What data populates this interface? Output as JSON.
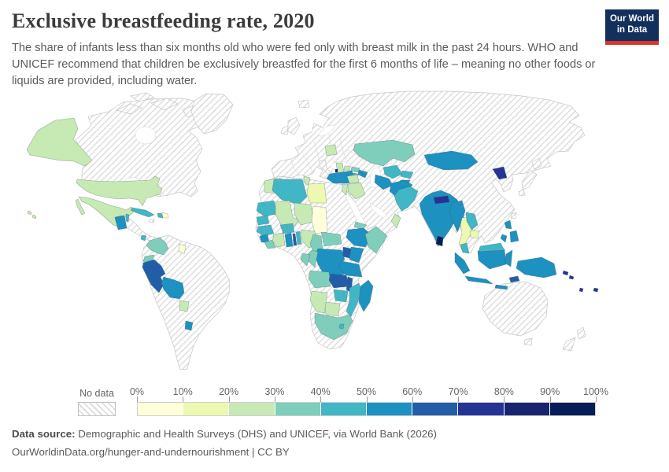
{
  "header": {
    "title": "Exclusive breastfeeding rate, 2020",
    "subtitle": "The share of infants less than six months old who were fed only with breast milk in the past 24 hours. WHO and UNICEF recommend that children be exclusively breastfed for the first 6 months of life – meaning no other foods or liquids are provided, including water.",
    "logo": {
      "line1": "Our World",
      "line2": "in Data",
      "navy": "#12305b",
      "red": "#d8352a"
    }
  },
  "legend": {
    "no_data_label": "No data",
    "ticks": [
      "0%",
      "10%",
      "20%",
      "30%",
      "40%",
      "50%",
      "60%",
      "70%",
      "80%",
      "90%",
      "100%"
    ],
    "bins": [
      {
        "range": "0-10%",
        "color": "#ffffd9"
      },
      {
        "range": "10-20%",
        "color": "#edf8b1"
      },
      {
        "range": "20-30%",
        "color": "#c7e9b4"
      },
      {
        "range": "30-40%",
        "color": "#7fcdbb"
      },
      {
        "range": "40-50%",
        "color": "#41b6c4"
      },
      {
        "range": "50-60%",
        "color": "#1d91c0"
      },
      {
        "range": "60-70%",
        "color": "#225ea8"
      },
      {
        "range": "70-80%",
        "color": "#253494"
      },
      {
        "range": "80-90%",
        "color": "#16256d"
      },
      {
        "range": "90-100%",
        "color": "#081d58"
      }
    ]
  },
  "footer": {
    "source_label": "Data source:",
    "source_text": " Demographic and Health Surveys (DHS) and UNICEF, via World Bank (2026)",
    "license_text": "OurWorldinData.org/hunger-and-undernourishment | CC BY"
  },
  "chart_data": {
    "type": "choropleth-map",
    "title": "Exclusive breastfeeding rate, 2020",
    "unit": "% of infants under six months exclusively breastfed",
    "legend_note": "Hatched pattern = no data",
    "countries": [
      {
        "id": "usa",
        "name": "United States",
        "bin": 2,
        "range": "20-30%"
      },
      {
        "id": "mexico",
        "name": "Mexico",
        "bin": 2,
        "range": "20-30%"
      },
      {
        "id": "guatemala",
        "name": "Guatemala",
        "bin": 5,
        "range": "50-60%"
      },
      {
        "id": "belize",
        "name": "Belize",
        "bin": 4,
        "range": "40-50%"
      },
      {
        "id": "costa-rica",
        "name": "Costa Rica",
        "bin": 4,
        "range": "40-50%"
      },
      {
        "id": "cuba",
        "name": "Cuba",
        "bin": 4,
        "range": "40-50%"
      },
      {
        "id": "haiti",
        "name": "Haiti",
        "bin": 4,
        "range": "40-50%"
      },
      {
        "id": "dominican-republic",
        "name": "Dominican Republic",
        "bin": 0,
        "range": "0-10%"
      },
      {
        "id": "colombia",
        "name": "Colombia",
        "bin": 3,
        "range": "30-40%"
      },
      {
        "id": "ecuador",
        "name": "Ecuador",
        "bin": 3,
        "range": "30-40%"
      },
      {
        "id": "guyana",
        "name": "Guyana",
        "bin": 0,
        "range": "0-10%"
      },
      {
        "id": "peru",
        "name": "Peru",
        "bin": 6,
        "range": "60-70%"
      },
      {
        "id": "bolivia",
        "name": "Bolivia",
        "bin": 5,
        "range": "50-60%"
      },
      {
        "id": "paraguay",
        "name": "Paraguay",
        "bin": 2,
        "range": "20-30%"
      },
      {
        "id": "uruguay",
        "name": "Uruguay",
        "bin": 5,
        "range": "50-60%"
      },
      {
        "id": "morocco",
        "name": "Morocco",
        "bin": 2,
        "range": "20-30%"
      },
      {
        "id": "algeria",
        "name": "Algeria",
        "bin": 4,
        "range": "40-50%"
      },
      {
        "id": "tunisia",
        "name": "Tunisia",
        "bin": 2,
        "range": "20-30%"
      },
      {
        "id": "libya",
        "name": "Libya",
        "bin": 1,
        "range": "10-20%"
      },
      {
        "id": "mauritania",
        "name": "Mauritania",
        "bin": 4,
        "range": "40-50%"
      },
      {
        "id": "senegal",
        "name": "Senegal",
        "bin": 4,
        "range": "40-50%"
      },
      {
        "id": "guinea",
        "name": "Guinea",
        "bin": 4,
        "range": "40-50%"
      },
      {
        "id": "sierra-leone",
        "name": "Sierra Leone",
        "bin": 5,
        "range": "50-60%"
      },
      {
        "id": "liberia",
        "name": "Liberia",
        "bin": 3,
        "range": "30-40%"
      },
      {
        "id": "cote-divoire",
        "name": "Cote d'Ivoire",
        "bin": 2,
        "range": "20-30%"
      },
      {
        "id": "burkina-faso",
        "name": "Burkina Faso",
        "bin": 4,
        "range": "40-50%"
      },
      {
        "id": "ghana",
        "name": "Ghana",
        "bin": 5,
        "range": "50-60%"
      },
      {
        "id": "togo",
        "name": "Togo",
        "bin": 6,
        "range": "60-70%"
      },
      {
        "id": "benin",
        "name": "Benin",
        "bin": 4,
        "range": "40-50%"
      },
      {
        "id": "mali",
        "name": "Mali",
        "bin": 2,
        "range": "20-30%"
      },
      {
        "id": "niger",
        "name": "Niger",
        "bin": 2,
        "range": "20-30%"
      },
      {
        "id": "nigeria",
        "name": "Nigeria",
        "bin": 2,
        "range": "20-30%"
      },
      {
        "id": "chad",
        "name": "Chad",
        "bin": 0,
        "range": "0-10%"
      },
      {
        "id": "cameroon",
        "name": "Cameroon",
        "bin": 3,
        "range": "30-40%"
      },
      {
        "id": "central-african-republic",
        "name": "Central African Republic",
        "bin": 3,
        "range": "30-40%"
      },
      {
        "id": "eritrea",
        "name": "Eritrea",
        "bin": 3,
        "range": "30-40%"
      },
      {
        "id": "ethiopia",
        "name": "Ethiopia",
        "bin": 5,
        "range": "50-60%"
      },
      {
        "id": "somalia",
        "name": "Somalia",
        "bin": 3,
        "range": "30-40%"
      },
      {
        "id": "kenya",
        "name": "Kenya",
        "bin": 5,
        "range": "50-60%"
      },
      {
        "id": "uganda",
        "name": "Uganda",
        "bin": 6,
        "range": "60-70%"
      },
      {
        "id": "rwanda-burundi",
        "name": "Rwanda & Burundi",
        "bin": 8,
        "range": "80-90%"
      },
      {
        "id": "drc",
        "name": "Democratic Republic of Congo",
        "bin": 5,
        "range": "50-60%"
      },
      {
        "id": "congo",
        "name": "Congo",
        "bin": 3,
        "range": "30-40%"
      },
      {
        "id": "gabon",
        "name": "Gabon",
        "bin": 3,
        "range": "30-40%"
      },
      {
        "id": "angola",
        "name": "Angola",
        "bin": 3,
        "range": "30-40%"
      },
      {
        "id": "zambia",
        "name": "Zambia",
        "bin": 6,
        "range": "60-70%"
      },
      {
        "id": "malawi",
        "name": "Malawi",
        "bin": 6,
        "range": "60-70%"
      },
      {
        "id": "tanzania",
        "name": "Tanzania",
        "bin": 5,
        "range": "50-60%"
      },
      {
        "id": "mozambique",
        "name": "Mozambique",
        "bin": 4,
        "range": "40-50%"
      },
      {
        "id": "zimbabwe",
        "name": "Zimbabwe",
        "bin": 4,
        "range": "40-50%"
      },
      {
        "id": "botswana",
        "name": "Botswana",
        "bin": 2,
        "range": "20-30%"
      },
      {
        "id": "namibia",
        "name": "Namibia",
        "bin": 2,
        "range": "20-30%"
      },
      {
        "id": "south-africa",
        "name": "South Africa",
        "bin": 3,
        "range": "30-40%"
      },
      {
        "id": "lesotho-eswatini",
        "name": "Lesotho & Eswatini",
        "bin": 4,
        "range": "40-50%"
      },
      {
        "id": "madagascar",
        "name": "Madagascar",
        "bin": 5,
        "range": "50-60%"
      },
      {
        "id": "belarus",
        "name": "Belarus",
        "bin": 2,
        "range": "20-30%"
      },
      {
        "id": "moldova",
        "name": "Moldova",
        "bin": 2,
        "range": "20-30%"
      },
      {
        "id": "balkans",
        "name": "Albania & North Macedonia",
        "bin": 2,
        "range": "20-30%"
      },
      {
        "id": "montenegro",
        "name": "Montenegro",
        "bin": 8,
        "range": "80-90%"
      },
      {
        "id": "turkey",
        "name": "Turkey",
        "bin": 5,
        "range": "50-60%"
      },
      {
        "id": "georgia",
        "name": "Georgia",
        "bin": 3,
        "range": "30-40%"
      },
      {
        "id": "armenia",
        "name": "Armenia",
        "bin": 4,
        "range": "40-50%"
      },
      {
        "id": "azerbaijan",
        "name": "Azerbaijan",
        "bin": 5,
        "range": "50-60%"
      },
      {
        "id": "syria",
        "name": "Syria",
        "bin": 2,
        "range": "20-30%"
      },
      {
        "id": "iraq",
        "name": "Iraq",
        "bin": 2,
        "range": "20-30%"
      },
      {
        "id": "jordan",
        "name": "Jordan",
        "bin": 2,
        "range": "20-30%"
      },
      {
        "id": "oman",
        "name": "Oman",
        "bin": 2,
        "range": "20-30%"
      },
      {
        "id": "kazakhstan",
        "name": "Kazakhstan",
        "bin": 3,
        "range": "30-40%"
      },
      {
        "id": "uzbekistan",
        "name": "Uzbekistan",
        "bin": 4,
        "range": "40-50%"
      },
      {
        "id": "turkmenistan",
        "name": "Turkmenistan",
        "bin": 5,
        "range": "50-60%"
      },
      {
        "id": "kyrgyzstan",
        "name": "Kyrgyzstan",
        "bin": 4,
        "range": "40-50%"
      },
      {
        "id": "tajikistan",
        "name": "Tajikistan",
        "bin": 5,
        "range": "50-60%"
      },
      {
        "id": "afghanistan",
        "name": "Afghanistan",
        "bin": 5,
        "range": "50-60%"
      },
      {
        "id": "pakistan",
        "name": "Pakistan",
        "bin": 4,
        "range": "40-50%"
      },
      {
        "id": "india",
        "name": "India",
        "bin": 5,
        "range": "50-60%"
      },
      {
        "id": "nepal",
        "name": "Nepal",
        "bin": 7,
        "range": "70-80%"
      },
      {
        "id": "bangladesh",
        "name": "Bangladesh",
        "bin": 7,
        "range": "70-80%"
      },
      {
        "id": "sri-lanka",
        "name": "Sri Lanka",
        "bin": 9,
        "range": "90-100%"
      },
      {
        "id": "myanmar",
        "name": "Myanmar",
        "bin": 5,
        "range": "50-60%"
      },
      {
        "id": "thailand",
        "name": "Thailand",
        "bin": 1,
        "range": "10-20%"
      },
      {
        "id": "laos",
        "name": "Laos",
        "bin": 4,
        "range": "40-50%"
      },
      {
        "id": "cambodia",
        "name": "Cambodia",
        "bin": 1,
        "range": "10-20%"
      },
      {
        "id": "mongolia",
        "name": "Mongolia",
        "bin": 5,
        "range": "50-60%"
      },
      {
        "id": "north-korea",
        "name": "North Korea",
        "bin": 7,
        "range": "70-80%"
      },
      {
        "id": "philippines",
        "name": "Philippines",
        "bin": 5,
        "range": "50-60%"
      },
      {
        "id": "malaysia",
        "name": "Malaysia",
        "bin": 4,
        "range": "40-50%"
      },
      {
        "id": "indonesia",
        "name": "Indonesia",
        "bin": 5,
        "range": "50-60%"
      },
      {
        "id": "timor-leste",
        "name": "Timor-Leste",
        "bin": 6,
        "range": "60-70%"
      },
      {
        "id": "papua-new-guinea",
        "name": "Papua New Guinea",
        "bin": 5,
        "range": "50-60%"
      },
      {
        "id": "solomon-islands",
        "name": "Solomon Islands",
        "bin": 7,
        "range": "70-80%"
      },
      {
        "id": "vanuatu",
        "name": "Vanuatu",
        "bin": 7,
        "range": "70-80%"
      },
      {
        "id": "fiji",
        "name": "Fiji",
        "bin": 7,
        "range": "70-80%"
      }
    ],
    "no_data_regions": [
      "Canada",
      "Greenland",
      "Brazil",
      "Venezuela",
      "Suriname",
      "Argentina",
      "Chile",
      "Honduras",
      "Nicaragua",
      "Panama",
      "Jamaica",
      "Europe (most countries)",
      "Ukraine",
      "Russia",
      "China",
      "Japan",
      "South Korea",
      "Taiwan",
      "Vietnam",
      "Iran",
      "Saudi Arabia",
      "Yemen",
      "Egypt",
      "Sudan",
      "South Sudan",
      "Western Sahara",
      "Australia",
      "New Zealand"
    ]
  }
}
